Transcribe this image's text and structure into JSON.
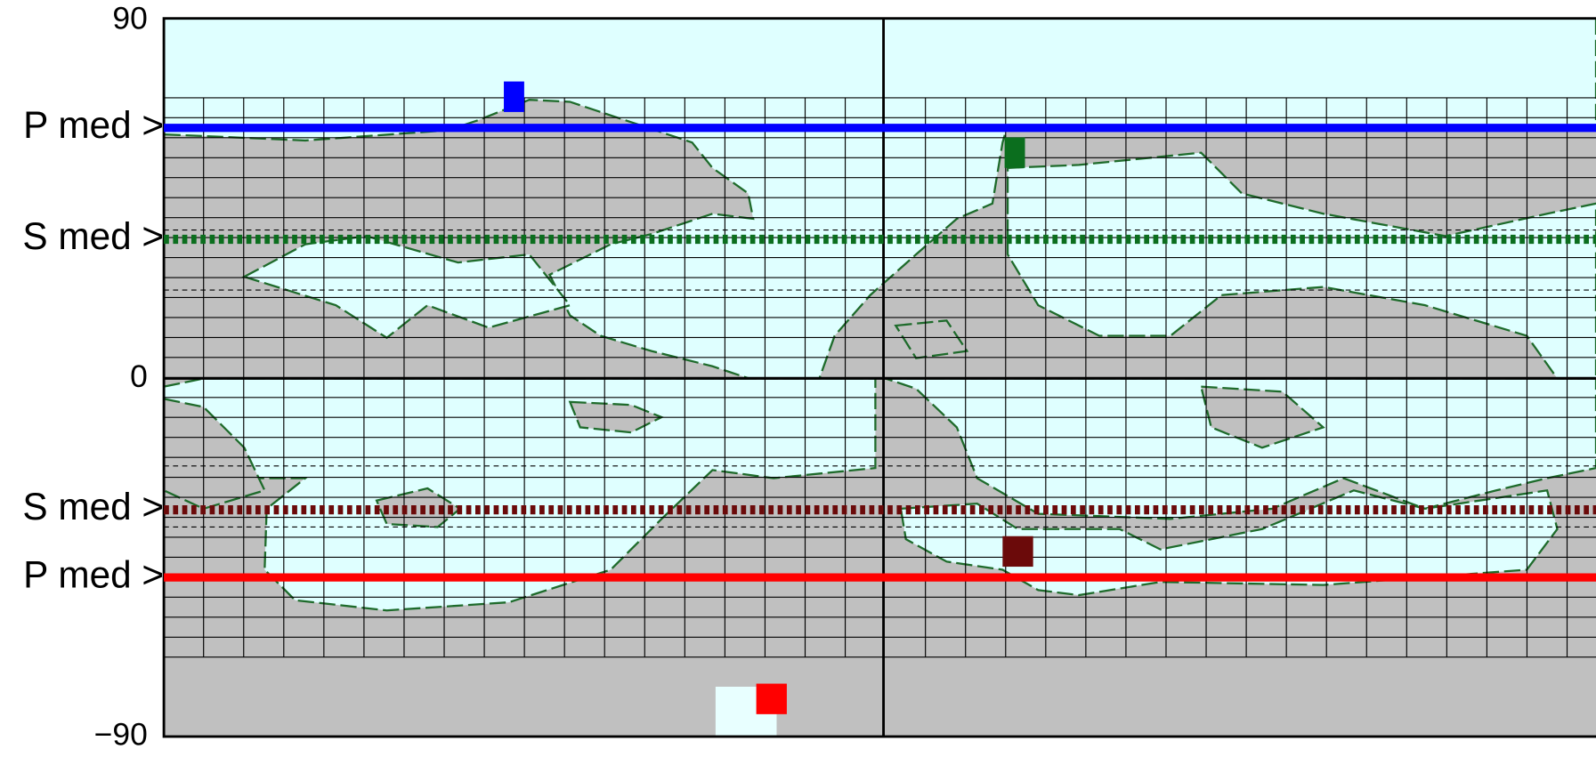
{
  "map": {
    "ylim": [
      -90,
      90
    ],
    "yticks": [
      90,
      0,
      {
        "value": -90,
        "label": "−90"
      }
    ],
    "markers": [
      {
        "label": "P med >",
        "lat": 63,
        "color": "#0000ff",
        "style": "solid"
      },
      {
        "label": "S med >",
        "lat": 35,
        "color": "#0b6e1e",
        "style": "dotted"
      },
      {
        "label": "S med >",
        "lat": -33,
        "color": "#6b0a0a",
        "style": "dotted"
      },
      {
        "label": "P med >",
        "lat": -50,
        "color": "#ff0000",
        "style": "solid"
      }
    ]
  }
}
